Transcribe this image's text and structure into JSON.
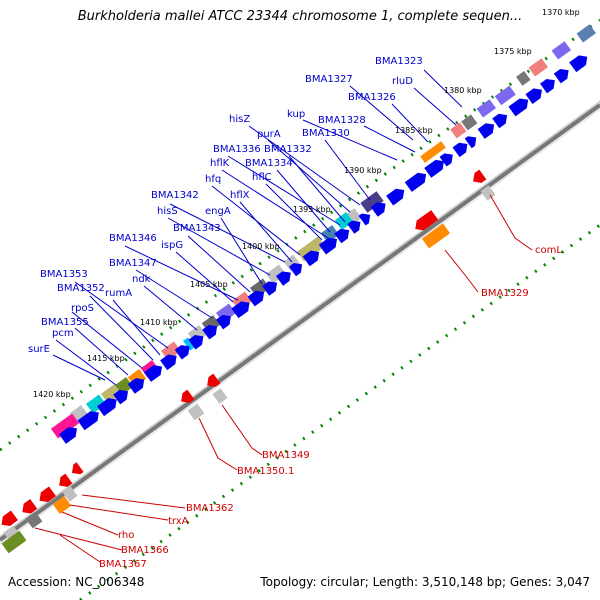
{
  "title": "Burkholderia mallei ATCC 23344 chromosome 1, complete sequen...",
  "footer": {
    "accession": "Accession: NC_006348",
    "summary": "Topology: circular; Length: 3,510,148 bp; Genes: 3,047"
  },
  "ticks": [
    "1370 kbp",
    "1375 kbp",
    "1380 kbp",
    "1385 kbp",
    "1390 kbp",
    "1395 kbp",
    "1400 kbp",
    "1405 kbp",
    "1410 kbp",
    "1415 kbp",
    "1420 kbp"
  ],
  "labels_forward": [
    {
      "text": "BMA1323"
    },
    {
      "text": "rluD"
    },
    {
      "text": "BMA1327"
    },
    {
      "text": "BMA1326"
    },
    {
      "text": "kup"
    },
    {
      "text": "BMA1328"
    },
    {
      "text": "hisZ"
    },
    {
      "text": "BMA1330"
    },
    {
      "text": "purA"
    },
    {
      "text": "BMA1336"
    },
    {
      "text": "BMA1332"
    },
    {
      "text": "hflK"
    },
    {
      "text": "BMA1334"
    },
    {
      "text": "hflC"
    },
    {
      "text": "hfq"
    },
    {
      "text": "hflX"
    },
    {
      "text": "BMA1342"
    },
    {
      "text": "hisS"
    },
    {
      "text": "engA"
    },
    {
      "text": "BMA1343"
    },
    {
      "text": "BMA1346"
    },
    {
      "text": "ispG"
    },
    {
      "text": "BMA1347"
    },
    {
      "text": "ndk"
    },
    {
      "text": "BMA1353"
    },
    {
      "text": "rumA"
    },
    {
      "text": "BMA1352"
    },
    {
      "text": "rpoS"
    },
    {
      "text": "BMA1355"
    },
    {
      "text": "pcm"
    },
    {
      "text": "surE"
    }
  ],
  "labels_reverse": [
    {
      "text": "comL"
    },
    {
      "text": "BMA1329"
    },
    {
      "text": "BMA1349"
    },
    {
      "text": "BMA1350.1"
    },
    {
      "text": "BMA1362"
    },
    {
      "text": "trxA"
    },
    {
      "text": "rho"
    },
    {
      "text": "BMA1366"
    },
    {
      "text": "BMA1367"
    }
  ],
  "colors": {
    "forward_label": "#0000cc",
    "reverse_label": "#cc0000",
    "forward_cds": "#0000ee",
    "reverse_cds": "#ee0000",
    "gc_tick": "#008800",
    "backbone": "#777777"
  }
}
